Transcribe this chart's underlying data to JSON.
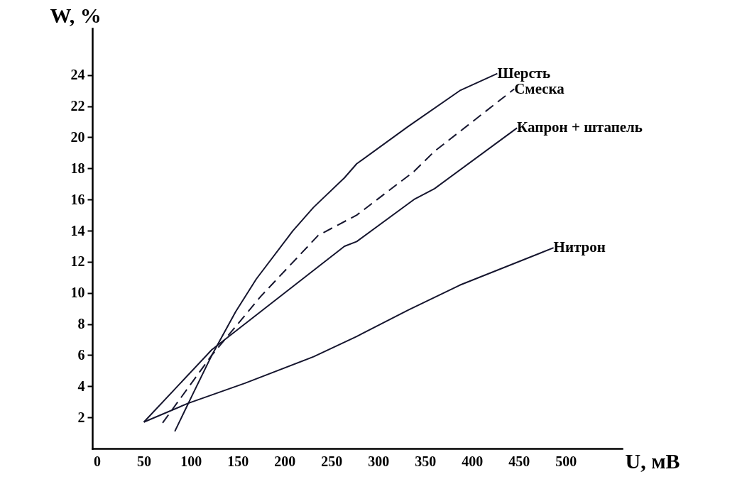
{
  "chart_data": {
    "type": "line",
    "xlabel": "U, мВ",
    "ylabel": "W, %",
    "xlim": [
      -5,
      560
    ],
    "ylim": [
      0,
      27
    ],
    "xticks": [
      0,
      50,
      100,
      150,
      200,
      250,
      300,
      350,
      400,
      450,
      500
    ],
    "yticks": [
      2,
      4,
      6,
      8,
      10,
      12,
      14,
      16,
      18,
      20,
      22,
      24
    ],
    "grid": false,
    "marker": "none",
    "series": [
      {
        "name": "Шерсть",
        "color": "#15152e",
        "line_style": "solid",
        "x": [
          83,
          103,
          122.5,
          148,
          170,
          209,
          231,
          264,
          277,
          332,
          387,
          427
        ],
        "values": [
          1.1,
          3.6,
          6.0,
          8.8,
          10.9,
          14.0,
          15.5,
          17.4,
          18.3,
          20.7,
          23.0,
          24.1
        ]
      },
      {
        "name": "Смеска",
        "color": "#15152e",
        "line_style": "dashed",
        "x": [
          70,
          122.5,
          175,
          236,
          277,
          338,
          360,
          445
        ],
        "values": [
          1.65,
          6.0,
          9.8,
          13.7,
          15.0,
          17.8,
          19.1,
          23.1
        ]
      },
      {
        "name": "Капрон + штапель",
        "color": "#15152e",
        "line_style": "solid",
        "x": [
          50,
          122.5,
          181,
          264,
          277,
          338,
          360,
          448
        ],
        "values": [
          1.7,
          6.35,
          9.1,
          13.0,
          13.3,
          16.0,
          16.7,
          20.6
        ]
      },
      {
        "name": "Нитрон",
        "color": "#15152e",
        "line_style": "solid",
        "x": [
          50,
          97,
          158,
          231,
          277,
          332,
          387,
          487
        ],
        "values": [
          1.7,
          2.9,
          4.2,
          5.9,
          7.2,
          8.9,
          10.5,
          12.9
        ]
      }
    ]
  }
}
